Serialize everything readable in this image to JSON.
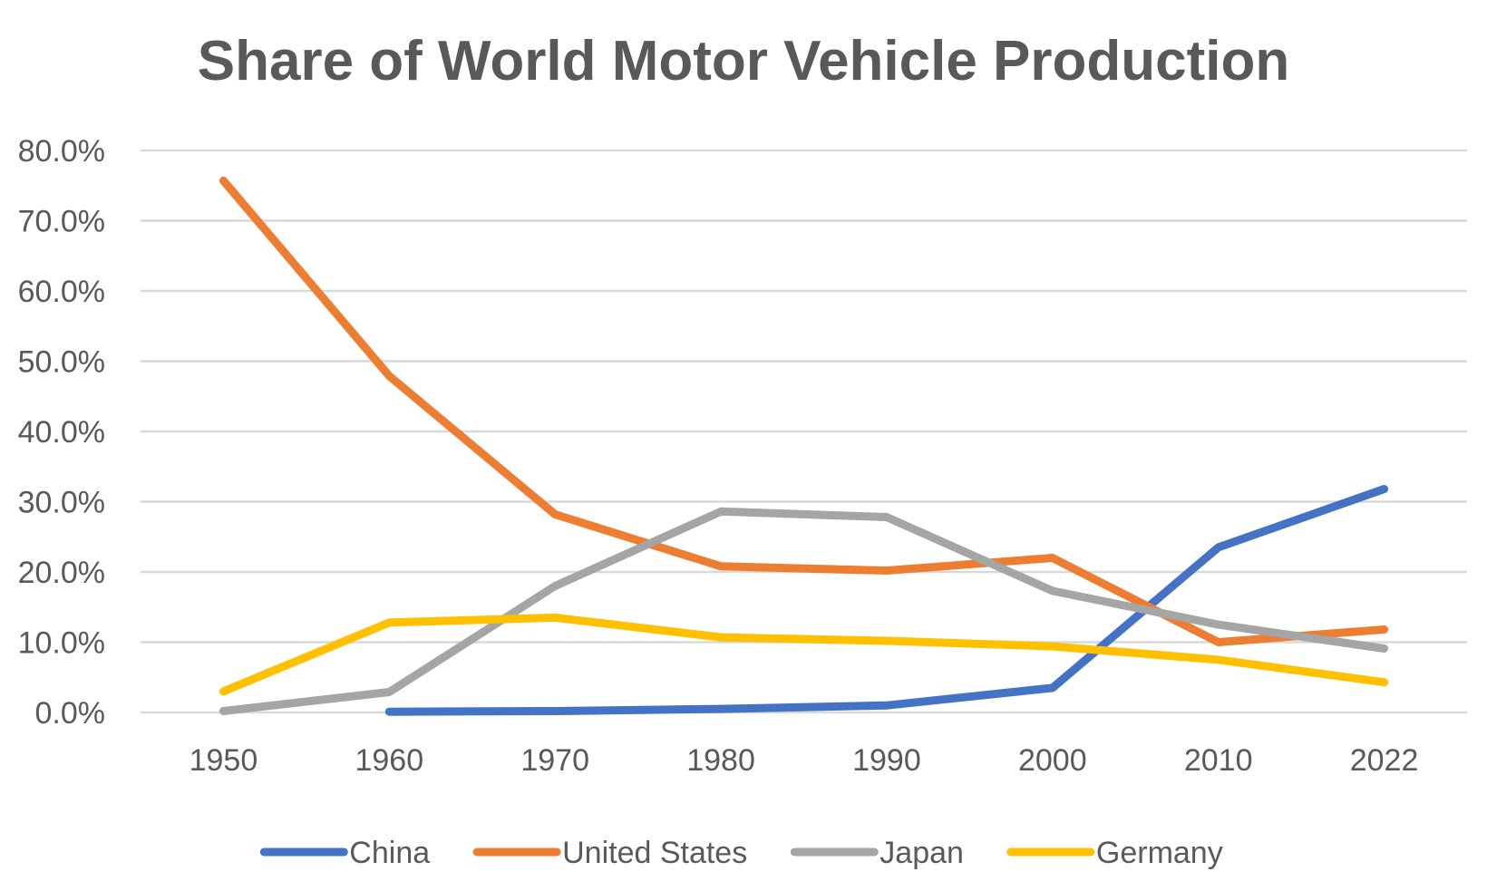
{
  "chart_data": {
    "type": "line",
    "title": "Share of World Motor Vehicle Production",
    "xlabel": "",
    "ylabel": "",
    "categories": [
      "1950",
      "1960",
      "1970",
      "1980",
      "1990",
      "2000",
      "2010",
      "2022"
    ],
    "y_ticks": [
      "0.0%",
      "10.0%",
      "20.0%",
      "30.0%",
      "40.0%",
      "50.0%",
      "60.0%",
      "70.0%",
      "80.0%"
    ],
    "ylim": [
      0,
      80
    ],
    "grid": true,
    "legend_position": "bottom",
    "series": [
      {
        "name": "China",
        "color": "#4472c4",
        "values": [
          null,
          0.1,
          0.2,
          0.5,
          1.0,
          3.5,
          23.5,
          31.8
        ]
      },
      {
        "name": "United States",
        "color": "#ed7d31",
        "values": [
          75.7,
          47.9,
          28.2,
          20.8,
          20.2,
          22.0,
          10.0,
          11.8
        ]
      },
      {
        "name": "Japan",
        "color": "#a5a5a5",
        "values": [
          0.2,
          2.9,
          18.0,
          28.6,
          27.8,
          17.3,
          12.5,
          9.1
        ]
      },
      {
        "name": "Germany",
        "color": "#ffc000",
        "values": [
          3.0,
          12.8,
          13.5,
          10.7,
          10.2,
          9.4,
          7.5,
          4.3
        ]
      }
    ]
  }
}
